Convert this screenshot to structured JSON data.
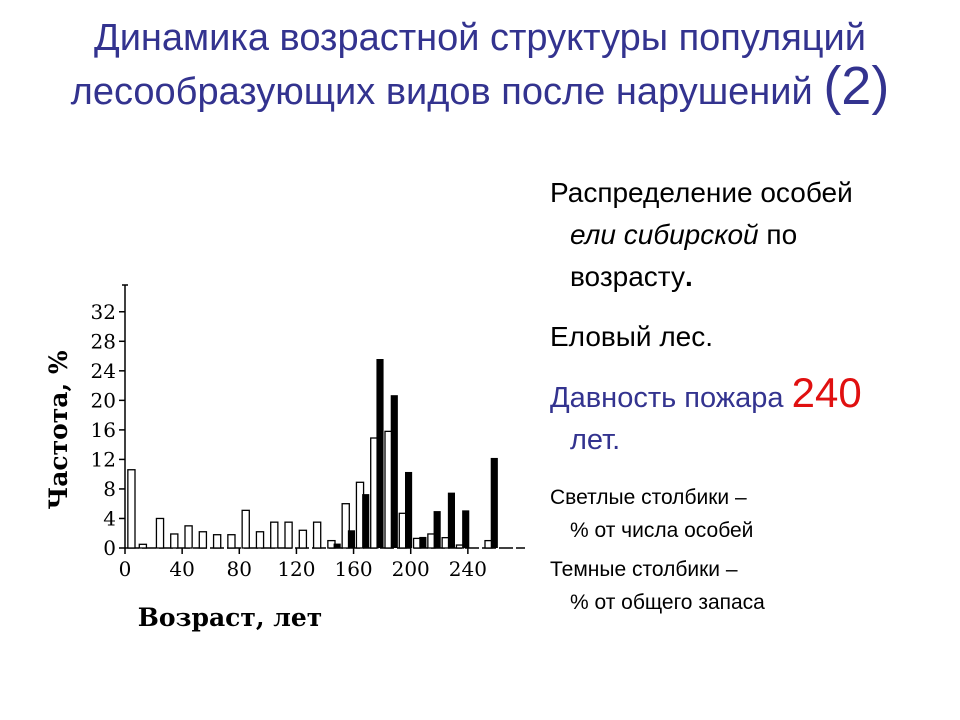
{
  "header": {
    "title_line1": "Динамика возрастной структуры популяций",
    "title_line2": "лесообразующих видов после нарушений",
    "title_num": "(2)"
  },
  "side": {
    "p1_line1": "Распределение особей",
    "p1_italic": "ели сибирской",
    "p1_rest": " по",
    "p1_line3": "возрасту",
    "p1_dot": ".",
    "forest": "Еловый лес.",
    "fire_label": "Давность пожара ",
    "fire_value": "240",
    "fire_unit": "лет.",
    "light_line1": "Светлые столбики –",
    "light_line2": "% от числа особей",
    "dark_line1": "Темные столбики –",
    "dark_line2": "% от общего запаса"
  },
  "colors": {
    "title": "#33338f",
    "accent": "#e01010",
    "bar_dark": "#000000",
    "bar_light": "#ffffff"
  },
  "chart_data": {
    "type": "bar",
    "xlabel": "Возраст, лет",
    "ylabel": "Частота, %",
    "xlim": [
      0,
      280
    ],
    "ylim": [
      0,
      34
    ],
    "xticks": [
      0,
      40,
      80,
      120,
      160,
      200,
      240
    ],
    "yticks": [
      0,
      4,
      8,
      12,
      16,
      20,
      24,
      28,
      32
    ],
    "bar_width_years": 5,
    "series": [
      {
        "name": "Светлые столбики",
        "style": "light",
        "points": [
          {
            "x": 2,
            "y": 10.6
          },
          {
            "x": 10,
            "y": 0.5
          },
          {
            "x": 22,
            "y": 4.0
          },
          {
            "x": 32,
            "y": 1.9
          },
          {
            "x": 42,
            "y": 3.0
          },
          {
            "x": 52,
            "y": 2.2
          },
          {
            "x": 62,
            "y": 1.8
          },
          {
            "x": 72,
            "y": 1.8
          },
          {
            "x": 82,
            "y": 5.1
          },
          {
            "x": 92,
            "y": 2.2
          },
          {
            "x": 102,
            "y": 3.5
          },
          {
            "x": 112,
            "y": 3.5
          },
          {
            "x": 122,
            "y": 2.4
          },
          {
            "x": 132,
            "y": 3.5
          },
          {
            "x": 142,
            "y": 1.0
          },
          {
            "x": 152,
            "y": 6.0
          },
          {
            "x": 162,
            "y": 8.9
          },
          {
            "x": 172,
            "y": 14.9
          },
          {
            "x": 182,
            "y": 15.8
          },
          {
            "x": 192,
            "y": 4.7
          },
          {
            "x": 202,
            "y": 1.3
          },
          {
            "x": 212,
            "y": 1.9
          },
          {
            "x": 222,
            "y": 1.4
          },
          {
            "x": 232,
            "y": 0.4
          },
          {
            "x": 252,
            "y": 1.0
          }
        ]
      },
      {
        "name": "Темные столбики",
        "style": "dark",
        "points": [
          {
            "x": 146,
            "y": 0.6
          },
          {
            "x": 156,
            "y": 2.4
          },
          {
            "x": 166,
            "y": 7.3
          },
          {
            "x": 176,
            "y": 25.6
          },
          {
            "x": 186,
            "y": 20.7
          },
          {
            "x": 196,
            "y": 10.3
          },
          {
            "x": 206,
            "y": 1.5
          },
          {
            "x": 216,
            "y": 5.0
          },
          {
            "x": 226,
            "y": 7.5
          },
          {
            "x": 236,
            "y": 5.1
          },
          {
            "x": 256,
            "y": 12.2
          }
        ]
      }
    ]
  }
}
